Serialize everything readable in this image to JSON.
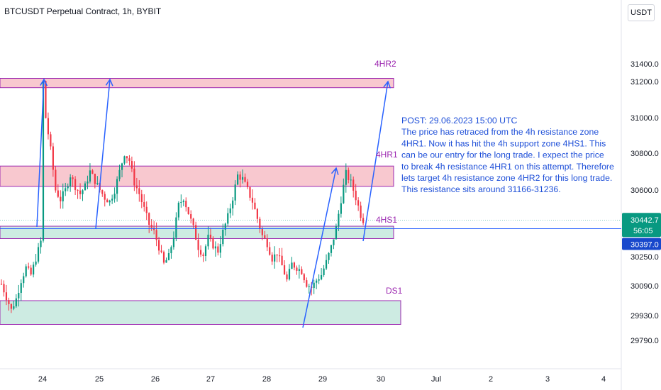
{
  "header": {
    "title": "BTCUSDT Perpetual Contract, 1h, BYBIT",
    "currency": "USDT"
  },
  "colors": {
    "up": "#089981",
    "down": "#f23645",
    "resistance_fill": "#f8c8cf",
    "support_fill": "#cdebe2",
    "zone_border": "#9c27b0",
    "arrow": "#2962ff",
    "price_badge": "#089981",
    "line_badge": "#1848cc"
  },
  "chart_data": {
    "type": "candlestick",
    "symbol": "BTCUSDT",
    "timeframe": "1h",
    "exchange": "BYBIT",
    "ylim": [
      29720,
      31570
    ],
    "y_ticks": [
      "31400.0",
      "31200.0",
      "31000.0",
      "30800.0",
      "30600.0",
      "30250.0",
      "30090.0",
      "29930.0",
      "29790.0"
    ],
    "x_ticks": [
      "24",
      "25",
      "26",
      "27",
      "28",
      "29",
      "30",
      "Jul",
      "2",
      "3",
      "4"
    ],
    "zones": [
      {
        "label": "4HR2",
        "kind": "resistance",
        "low": 31166,
        "high": 31236
      },
      {
        "label": "4HR1",
        "kind": "resistance",
        "low": 30620,
        "high": 30730
      },
      {
        "label": "4HS1",
        "kind": "support",
        "low": 30345,
        "high": 30410
      },
      {
        "label": "DS1",
        "kind": "support",
        "low": 29880,
        "high": 30010
      }
    ],
    "horizontal_line": {
      "value": 30397.0,
      "label": "30397.0"
    },
    "last_price": {
      "value": 30442.7,
      "label": "30442.7",
      "countdown": "56:05"
    },
    "annotation": [
      "POST: 29.06.2023 15:00 UTC",
      "The price has retraced from the 4h resistance zone",
      "4HR1. Now it has hit the 4h support zone 4HS1. This",
      "can be our entry for the long trade. I expect the price",
      "to break 4h resistance 4HR1 on this attempt. Therefore",
      "lets target 4h resistance zone 4HR2 for this long trade.",
      "This resistance sits around 31166-31236."
    ],
    "close_path": [
      [
        0,
        30100
      ],
      [
        2,
        30030
      ],
      [
        4,
        29960
      ],
      [
        6,
        30020
      ],
      [
        8,
        30120
      ],
      [
        10,
        30190
      ],
      [
        12,
        30150
      ],
      [
        14,
        30240
      ],
      [
        16,
        30330
      ],
      [
        17,
        31200
      ],
      [
        18,
        31000
      ],
      [
        20,
        30820
      ],
      [
        22,
        30600
      ],
      [
        24,
        30550
      ],
      [
        26,
        30600
      ],
      [
        28,
        30680
      ],
      [
        30,
        30620
      ],
      [
        32,
        30580
      ],
      [
        34,
        30620
      ],
      [
        36,
        30700
      ],
      [
        38,
        30650
      ],
      [
        40,
        30600
      ],
      [
        42,
        30560
      ],
      [
        44,
        30540
      ],
      [
        46,
        30600
      ],
      [
        48,
        30700
      ],
      [
        50,
        30800
      ],
      [
        52,
        30760
      ],
      [
        54,
        30640
      ],
      [
        56,
        30580
      ],
      [
        58,
        30500
      ],
      [
        60,
        30420
      ],
      [
        62,
        30380
      ],
      [
        64,
        30300
      ],
      [
        66,
        30210
      ],
      [
        68,
        30250
      ],
      [
        70,
        30360
      ],
      [
        72,
        30520
      ],
      [
        74,
        30560
      ],
      [
        76,
        30480
      ],
      [
        78,
        30400
      ],
      [
        80,
        30300
      ],
      [
        82,
        30260
      ],
      [
        84,
        30350
      ],
      [
        86,
        30310
      ],
      [
        88,
        30280
      ],
      [
        90,
        30380
      ],
      [
        92,
        30460
      ],
      [
        94,
        30560
      ],
      [
        96,
        30680
      ],
      [
        98,
        30660
      ],
      [
        100,
        30600
      ],
      [
        102,
        30540
      ],
      [
        104,
        30450
      ],
      [
        106,
        30360
      ],
      [
        108,
        30320
      ],
      [
        110,
        30240
      ],
      [
        112,
        30270
      ],
      [
        114,
        30200
      ],
      [
        116,
        30120
      ],
      [
        118,
        30210
      ],
      [
        120,
        30190
      ],
      [
        122,
        30170
      ],
      [
        124,
        30100
      ],
      [
        126,
        30080
      ],
      [
        128,
        30120
      ],
      [
        130,
        30150
      ],
      [
        132,
        30220
      ],
      [
        134,
        30300
      ],
      [
        136,
        30400
      ],
      [
        138,
        30550
      ],
      [
        140,
        30690
      ],
      [
        142,
        30640
      ],
      [
        144,
        30560
      ],
      [
        146,
        30470
      ],
      [
        147,
        30442.7
      ]
    ]
  }
}
